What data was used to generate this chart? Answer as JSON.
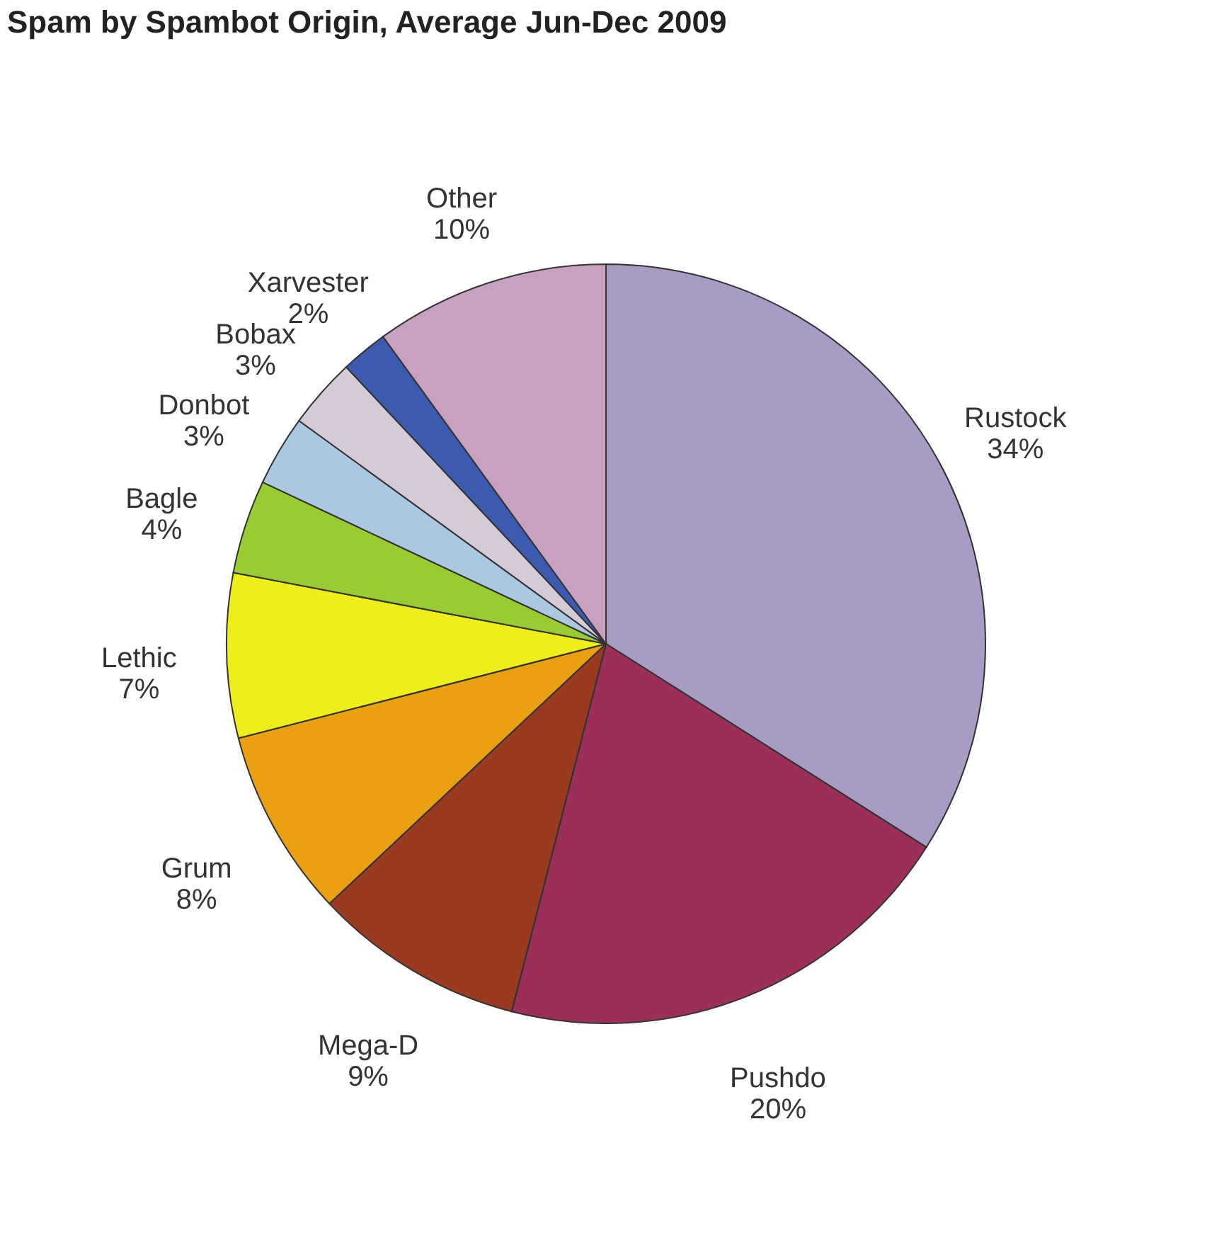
{
  "chart_data": {
    "type": "pie",
    "title": "Spam by Spambot Origin, Average Jun-Dec 2009",
    "categories": [
      "Rustock",
      "Pushdo",
      "Mega-D",
      "Grum",
      "Lethic",
      "Bagle",
      "Donbot",
      "Bobax",
      "Xarvester",
      "Other"
    ],
    "values": [
      34,
      20,
      9,
      8,
      7,
      4,
      3,
      3,
      2,
      10
    ],
    "value_labels": [
      "34%",
      "20%",
      "9%",
      "8%",
      "7%",
      "4%",
      "3%",
      "3%",
      "2%",
      "10%"
    ],
    "colors": [
      "#a89bc4",
      "#9b2f5a",
      "#9a3a20",
      "#eba012",
      "#eeee1a",
      "#99cc33",
      "#aac8e0",
      "#d4cad8",
      "#3b5ab0",
      "#c8a0c0"
    ],
    "legend": false
  }
}
